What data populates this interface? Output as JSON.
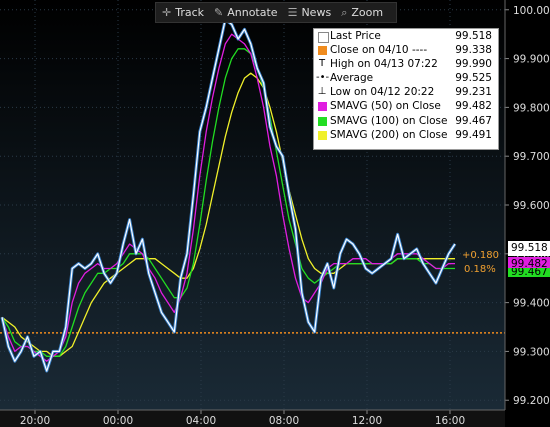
{
  "toolbar": {
    "items": [
      {
        "label": "Track",
        "icon": "crosshair-icon"
      },
      {
        "label": "Annotate",
        "icon": "pencil-icon"
      },
      {
        "label": "News",
        "icon": "news-icon"
      },
      {
        "label": "Zoom",
        "icon": "zoom-icon"
      }
    ]
  },
  "legend": {
    "rows": [
      {
        "label": "Last Price",
        "value": "99.518",
        "kind": "box",
        "color": "#ffffff"
      },
      {
        "label": "Close on 04/10 ----",
        "value": "99.338",
        "kind": "box",
        "color": "#f08c1e"
      },
      {
        "label": "High on 04/13 07:22",
        "value": "99.990",
        "kind": "glyph",
        "glyph": "T"
      },
      {
        "label": "Average",
        "value": "99.525",
        "kind": "glyph",
        "glyph": "-•-"
      },
      {
        "label": "Low on 04/12 20:22",
        "value": "99.231",
        "kind": "glyph",
        "glyph": "⊥"
      },
      {
        "label": "SMAVG (50) on Close",
        "value": "99.482",
        "kind": "box",
        "color": "#e01ee0"
      },
      {
        "label": "SMAVG (100) on Close",
        "value": "99.467",
        "kind": "box",
        "color": "#22dd22"
      },
      {
        "label": "SMAVG (200) on Close",
        "value": "99.491",
        "kind": "box",
        "color": "#f0f02a"
      }
    ]
  },
  "tags": {
    "last_price": "99.518",
    "sma50": "99.482",
    "sma100_partial": "99.467",
    "change_abs": "+0.180",
    "change_pct": "0.18%"
  },
  "chart_data": {
    "type": "line",
    "x_ticks": [
      "20:00",
      "00:00",
      "04:00",
      "08:00",
      "12:00",
      "16:00"
    ],
    "y_ticks": [
      "99.200",
      "99.300",
      "99.400",
      "99.500",
      "99.600",
      "99.700",
      "99.800",
      "99.900",
      "100.000"
    ],
    "ylim": [
      99.18,
      100.02
    ],
    "reference_close": 99.338,
    "series": [
      {
        "name": "Last Price",
        "color": "#ffffff",
        "values": [
          99.37,
          99.31,
          99.28,
          99.3,
          99.33,
          99.29,
          99.3,
          99.26,
          99.3,
          99.3,
          99.35,
          99.47,
          99.48,
          99.47,
          99.48,
          99.5,
          99.46,
          99.44,
          99.46,
          99.52,
          99.57,
          99.5,
          99.53,
          99.46,
          99.42,
          99.38,
          99.36,
          99.34,
          99.45,
          99.5,
          99.62,
          99.75,
          99.8,
          99.86,
          99.92,
          99.98,
          99.97,
          99.94,
          99.96,
          99.93,
          99.88,
          99.85,
          99.76,
          99.72,
          99.7,
          99.62,
          99.55,
          99.42,
          99.36,
          99.34,
          99.45,
          99.48,
          99.43,
          99.5,
          99.53,
          99.52,
          99.5,
          99.47,
          99.46,
          99.47,
          99.48,
          99.49,
          99.54,
          99.49,
          99.5,
          99.51,
          99.48,
          99.46,
          99.44,
          99.47,
          99.5,
          99.52
        ]
      },
      {
        "name": "SMAVG (50) on Close",
        "color": "#e01ee0",
        "values": [
          99.37,
          99.33,
          99.3,
          99.31,
          99.31,
          99.3,
          99.29,
          99.28,
          99.29,
          99.3,
          99.33,
          99.4,
          99.44,
          99.46,
          99.47,
          99.48,
          99.47,
          99.47,
          99.48,
          99.5,
          99.52,
          99.51,
          99.5,
          99.47,
          99.45,
          99.42,
          99.4,
          99.38,
          99.41,
          99.46,
          99.55,
          99.66,
          99.75,
          99.82,
          99.88,
          99.93,
          99.95,
          99.94,
          99.93,
          99.91,
          99.86,
          99.8,
          99.72,
          99.66,
          99.58,
          99.51,
          99.45,
          99.41,
          99.4,
          99.42,
          99.44,
          99.47,
          99.48,
          99.48,
          99.48,
          99.49,
          99.49,
          99.49,
          99.48,
          99.48,
          99.48,
          99.49,
          99.5,
          99.5,
          99.5,
          99.5,
          99.49,
          99.48,
          99.47,
          99.47,
          99.48,
          99.48
        ]
      },
      {
        "name": "SMAVG (100) on Close",
        "color": "#22dd22",
        "values": [
          99.37,
          99.35,
          99.32,
          99.31,
          99.31,
          99.3,
          99.3,
          99.29,
          99.29,
          99.29,
          99.31,
          99.35,
          99.39,
          99.42,
          99.44,
          99.46,
          99.46,
          99.47,
          99.47,
          99.48,
          99.5,
          99.5,
          99.5,
          99.49,
          99.47,
          99.45,
          99.43,
          99.41,
          99.41,
          99.43,
          99.48,
          99.56,
          99.65,
          99.73,
          99.8,
          99.86,
          99.9,
          99.92,
          99.92,
          99.91,
          99.88,
          99.84,
          99.78,
          99.71,
          99.64,
          99.57,
          99.52,
          99.47,
          99.45,
          99.44,
          99.45,
          99.46,
          99.47,
          99.48,
          99.48,
          99.48,
          99.48,
          99.48,
          99.48,
          99.48,
          99.48,
          99.48,
          99.49,
          99.49,
          99.49,
          99.49,
          99.48,
          99.48,
          99.47,
          99.47,
          99.47,
          99.47
        ]
      },
      {
        "name": "SMAVG (200) on Close",
        "color": "#f0f02a",
        "values": [
          99.37,
          99.36,
          99.35,
          99.33,
          99.32,
          99.31,
          99.3,
          99.3,
          99.29,
          99.29,
          99.3,
          99.31,
          99.34,
          99.37,
          99.4,
          99.42,
          99.44,
          99.45,
          99.46,
          99.47,
          99.48,
          99.49,
          99.49,
          99.49,
          99.49,
          99.48,
          99.47,
          99.46,
          99.45,
          99.45,
          99.47,
          99.51,
          99.56,
          99.62,
          99.68,
          99.74,
          99.79,
          99.83,
          99.86,
          99.87,
          99.86,
          99.84,
          99.8,
          99.75,
          99.69,
          99.63,
          99.58,
          99.53,
          99.49,
          99.47,
          99.46,
          99.46,
          99.46,
          99.47,
          99.48,
          99.48,
          99.48,
          99.48,
          99.48,
          99.48,
          99.48,
          99.48,
          99.49,
          99.49,
          99.49,
          99.49,
          99.49,
          99.49,
          99.49,
          99.49,
          99.49,
          99.49
        ]
      }
    ]
  }
}
